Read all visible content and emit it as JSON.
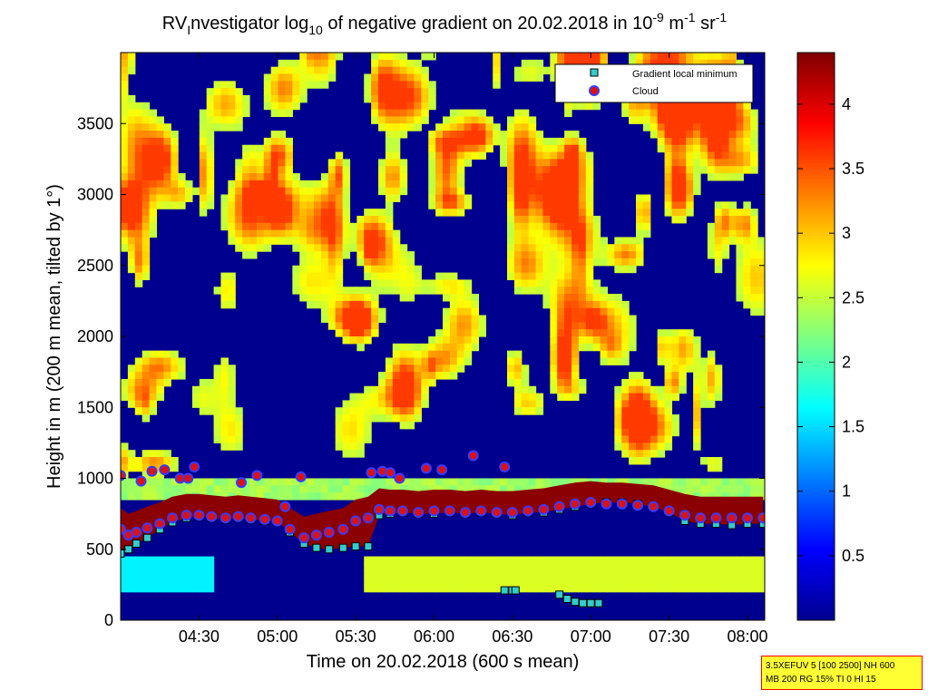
{
  "chart_data": {
    "type": "heatmap",
    "title": {
      "prefix": "RV",
      "prefix_sub": "I",
      "mid1": "nvestigator log",
      "log_sub": "10",
      "mid2": " of negative gradient on 20.02.2018 in 10",
      "exp1": "-9",
      "mid3": " m",
      "exp2": "-1",
      "mid4": " sr",
      "exp3": "-1"
    },
    "xlabel": "Time on 20.02.2018 (600 s mean)",
    "ylabel": "Height in m (200 m mean, tilted by 1°)",
    "x_ticks": [
      "04:30",
      "05:00",
      "05:30",
      "06:00",
      "06:30",
      "07:00",
      "07:30",
      "08:00"
    ],
    "x_tick_hours": [
      4.5,
      5.0,
      5.5,
      6.0,
      6.5,
      7.0,
      7.5,
      8.0
    ],
    "xlim_hours": [
      4.0,
      8.11
    ],
    "y_ticks": [
      "0",
      "500",
      "1000",
      "1500",
      "2000",
      "2500",
      "3000",
      "3500"
    ],
    "y_tick_values": [
      0,
      500,
      1000,
      1500,
      2000,
      2500,
      3000,
      3500
    ],
    "ylim": [
      0,
      4000
    ],
    "colorbar": {
      "ticks": [
        "0.5",
        "1",
        "1.5",
        "2",
        "2.5",
        "3",
        "3.5",
        "4"
      ],
      "tick_values": [
        0.5,
        1,
        1.5,
        2,
        2.5,
        3,
        3.5,
        4
      ],
      "range": [
        0,
        4.4
      ],
      "colormap": "jet"
    },
    "legend": {
      "placement": "top-right",
      "entries": [
        "Gradient local minimum",
        "Cloud"
      ],
      "colors": [
        "#33cccc",
        "#dd1111"
      ]
    },
    "series": [
      {
        "name": "Gradient local minimum",
        "x_hours": [
          4.0,
          4.05,
          4.1,
          4.17,
          4.25,
          4.33,
          4.42,
          4.5,
          4.58,
          4.67,
          4.75,
          4.83,
          4.92,
          5.0,
          5.08,
          5.17,
          5.25,
          5.33,
          5.42,
          5.5,
          5.58,
          5.65,
          5.72,
          5.8,
          5.9,
          6.0,
          6.1,
          6.2,
          6.3,
          6.4,
          6.5,
          6.6,
          6.7,
          6.8,
          6.9,
          7.0,
          7.1,
          7.2,
          7.3,
          7.4,
          7.5,
          7.6,
          7.7,
          7.8,
          7.9,
          8.0,
          8.1
        ],
        "heights": [
          470,
          500,
          540,
          580,
          640,
          690,
          720,
          730,
          720,
          710,
          720,
          710,
          700,
          700,
          620,
          540,
          510,
          500,
          510,
          520,
          520,
          740,
          750,
          760,
          750,
          750,
          760,
          750,
          760,
          750,
          740,
          760,
          760,
          780,
          800,
          820,
          830,
          830,
          820,
          800,
          760,
          700,
          680,
          680,
          670,
          680,
          680
        ]
      },
      {
        "name": "Cloud",
        "x_hours": [
          4.0,
          4.05,
          4.1,
          4.17,
          4.25,
          4.33,
          4.42,
          4.5,
          4.58,
          4.67,
          4.75,
          4.83,
          4.92,
          5.0,
          5.08,
          5.17,
          5.25,
          5.33,
          5.42,
          5.5,
          5.58,
          5.65,
          5.72,
          5.8,
          5.9,
          6.0,
          6.1,
          6.2,
          6.3,
          6.4,
          6.5,
          6.6,
          6.7,
          6.8,
          6.9,
          7.0,
          7.1,
          7.2,
          7.3,
          7.4,
          7.5,
          7.6,
          7.7,
          7.8,
          7.9,
          8.0,
          8.1
        ],
        "heights": [
          640,
          600,
          620,
          650,
          680,
          720,
          740,
          740,
          730,
          720,
          730,
          720,
          710,
          700,
          640,
          580,
          600,
          620,
          640,
          700,
          720,
          780,
          770,
          770,
          760,
          770,
          770,
          760,
          770,
          760,
          760,
          770,
          780,
          800,
          820,
          830,
          820,
          820,
          810,
          800,
          770,
          740,
          720,
          720,
          720,
          720,
          720
        ]
      },
      {
        "name": "Cloud (upper)",
        "x_hours": [
          4.0,
          4.13,
          4.2,
          4.28,
          4.38,
          4.43,
          4.47,
          4.77,
          4.87,
          5.05,
          5.15,
          5.6,
          5.67,
          5.72,
          5.78,
          5.95,
          6.05,
          6.25,
          6.45
        ],
        "heights": [
          1020,
          980,
          1050,
          1060,
          1000,
          1000,
          1080,
          970,
          1020,
          800,
          1010,
          1040,
          1050,
          1040,
          1000,
          1070,
          1060,
          1160,
          1080
        ]
      },
      {
        "name": "Gradient local minimum (lower)",
        "x_hours": [
          6.45,
          6.5,
          6.52,
          6.8,
          6.85,
          6.9,
          6.95,
          7.0,
          7.05
        ],
        "heights": [
          210,
          210,
          210,
          180,
          150,
          130,
          120,
          120,
          120
        ]
      }
    ]
  },
  "info_box": {
    "line1": "3.5XEFUV 5 [100 2500] NH 600",
    "line2": "MB 200 RG 15% TI 0 HI 15",
    "border_color": "#ff0000",
    "background_color": "#ffff33"
  }
}
